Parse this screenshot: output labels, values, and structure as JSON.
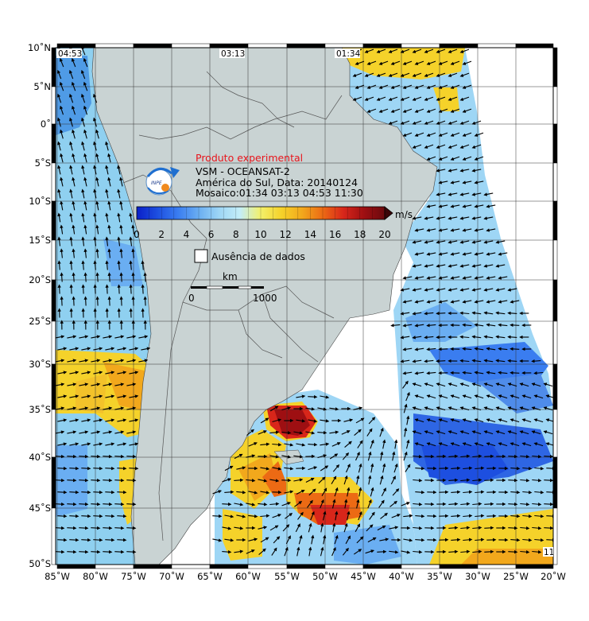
{
  "title": {
    "experimental": "Produto experimental",
    "sensor": "VSM - OCEANSAT-2",
    "region_date": "América do Sul, Data: 20140124",
    "mosaic": "Mosaico:01:34 03:13 04:53 11:30"
  },
  "logo_text": "INPE",
  "colorbar": {
    "unit": "m/s",
    "ticks": [
      "0",
      "2",
      "4",
      "6",
      "8",
      "10",
      "12",
      "14",
      "16",
      "18",
      "20"
    ],
    "min": 0,
    "max": 20,
    "colors": [
      "#0a1fc8",
      "#1d4fe0",
      "#3a7df0",
      "#6aaef2",
      "#9ed6f5",
      "#c4eef8",
      "#f3f06a",
      "#f5d22a",
      "#f2a81c",
      "#ec6a14",
      "#d8261a",
      "#9e0f12",
      "#6a0a0e"
    ]
  },
  "legend": {
    "no_data": "Ausência de dados"
  },
  "scale_bar": {
    "unit": "km",
    "start": "0",
    "end": "1000"
  },
  "pass_times": [
    "04:53",
    "03:13",
    "01:34",
    "11"
  ],
  "axes": {
    "lon_labels": [
      "85˚W",
      "80˚W",
      "75˚W",
      "70˚W",
      "65˚W",
      "60˚W",
      "55˚W",
      "50˚W",
      "45˚W",
      "40˚W",
      "35˚W",
      "30˚W",
      "25˚W",
      "20˚W"
    ],
    "lat_labels": [
      "10˚N",
      "5˚N",
      "0˚",
      "5˚S",
      "10˚S",
      "15˚S",
      "20˚S",
      "25˚S",
      "30˚S",
      "35˚S",
      "40˚S",
      "45˚S",
      "50˚S"
    ],
    "lon_range": [
      -85,
      -20
    ],
    "lat_range": [
      -50,
      10
    ],
    "grid": true
  },
  "colors": {
    "land": "#c9d3d3",
    "ocean_nodata": "#ffffff",
    "frame": "#000000",
    "vector": "#000000"
  }
}
